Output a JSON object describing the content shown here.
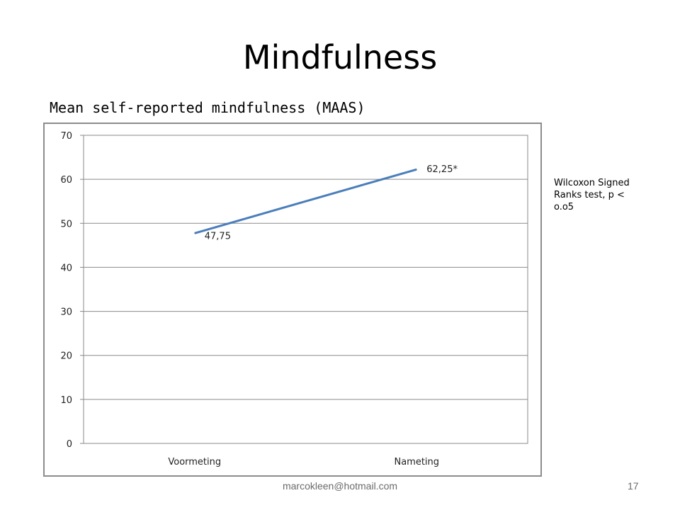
{
  "slide": {
    "title": "Mindfulness",
    "footer_email": "marcokleen@hotmail.com",
    "page_number": "17"
  },
  "chart_heading": "Mean self-reported mindfulness (MAAS)",
  "side_note": "Wilcoxon Signed Ranks test, p < o.o5",
  "chart_data": {
    "type": "line",
    "title": "",
    "xlabel": "",
    "ylabel": "",
    "categories": [
      "Voormeting",
      "Nameting"
    ],
    "series": [
      {
        "values": [
          47.75,
          62.25
        ],
        "color": "#4a7ebb"
      }
    ],
    "data_labels": [
      "47,75",
      "62,25*"
    ],
    "ylim": [
      0,
      70
    ],
    "yticks": [
      0,
      10,
      20,
      30,
      40,
      50,
      60,
      70
    ],
    "ytick_labels": [
      "0",
      "10",
      "20",
      "30",
      "40",
      "50",
      "60",
      "70"
    ],
    "grid": true,
    "legend": "none"
  }
}
